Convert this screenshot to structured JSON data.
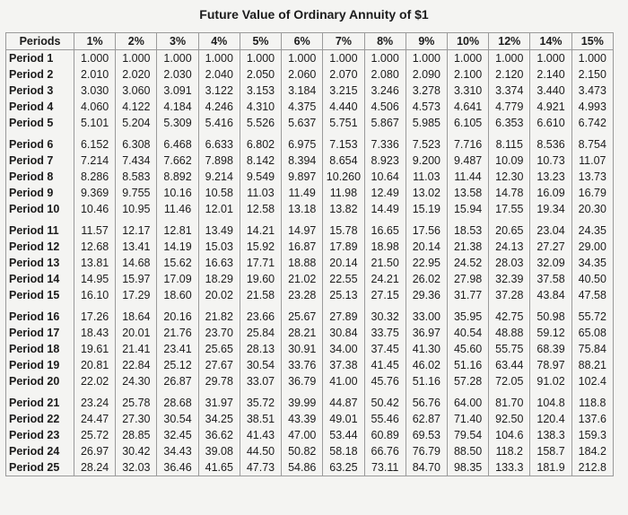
{
  "title": "Future Value of Ordinary Annuity of $1",
  "table": {
    "header": [
      "Periods",
      "1%",
      "2%",
      "3%",
      "4%",
      "5%",
      "6%",
      "7%",
      "8%",
      "9%",
      "10%",
      "12%",
      "14%",
      "15%"
    ],
    "rows": [
      [
        "Period 1",
        "1.000",
        "1.000",
        "1.000",
        "1.000",
        "1.000",
        "1.000",
        "1.000",
        "1.000",
        "1.000",
        "1.000",
        "1.000",
        "1.000",
        "1.000"
      ],
      [
        "Period 2",
        "2.010",
        "2.020",
        "2.030",
        "2.040",
        "2.050",
        "2.060",
        "2.070",
        "2.080",
        "2.090",
        "2.100",
        "2.120",
        "2.140",
        "2.150"
      ],
      [
        "Period 3",
        "3.030",
        "3.060",
        "3.091",
        "3.122",
        "3.153",
        "3.184",
        "3.215",
        "3.246",
        "3.278",
        "3.310",
        "3.374",
        "3.440",
        "3.473"
      ],
      [
        "Period 4",
        "4.060",
        "4.122",
        "4.184",
        "4.246",
        "4.310",
        "4.375",
        "4.440",
        "4.506",
        "4.573",
        "4.641",
        "4.779",
        "4.921",
        "4.993"
      ],
      [
        "Period 5",
        "5.101",
        "5.204",
        "5.309",
        "5.416",
        "5.526",
        "5.637",
        "5.751",
        "5.867",
        "5.985",
        "6.105",
        "6.353",
        "6.610",
        "6.742"
      ],
      [
        "Period 6",
        "6.152",
        "6.308",
        "6.468",
        "6.633",
        "6.802",
        "6.975",
        "7.153",
        "7.336",
        "7.523",
        "7.716",
        "8.115",
        "8.536",
        "8.754"
      ],
      [
        "Period 7",
        "7.214",
        "7.434",
        "7.662",
        "7.898",
        "8.142",
        "8.394",
        "8.654",
        "8.923",
        "9.200",
        "9.487",
        "10.09",
        "10.73",
        "11.07"
      ],
      [
        "Period 8",
        "8.286",
        "8.583",
        "8.892",
        "9.214",
        "9.549",
        "9.897",
        "10.260",
        "10.64",
        "11.03",
        "11.44",
        "12.30",
        "13.23",
        "13.73"
      ],
      [
        "Period 9",
        "9.369",
        "9.755",
        "10.16",
        "10.58",
        "11.03",
        "11.49",
        "11.98",
        "12.49",
        "13.02",
        "13.58",
        "14.78",
        "16.09",
        "16.79"
      ],
      [
        "Period 10",
        "10.46",
        "10.95",
        "11.46",
        "12.01",
        "12.58",
        "13.18",
        "13.82",
        "14.49",
        "15.19",
        "15.94",
        "17.55",
        "19.34",
        "20.30"
      ],
      [
        "Period 11",
        "11.57",
        "12.17",
        "12.81",
        "13.49",
        "14.21",
        "14.97",
        "15.78",
        "16.65",
        "17.56",
        "18.53",
        "20.65",
        "23.04",
        "24.35"
      ],
      [
        "Period 12",
        "12.68",
        "13.41",
        "14.19",
        "15.03",
        "15.92",
        "16.87",
        "17.89",
        "18.98",
        "20.14",
        "21.38",
        "24.13",
        "27.27",
        "29.00"
      ],
      [
        "Period 13",
        "13.81",
        "14.68",
        "15.62",
        "16.63",
        "17.71",
        "18.88",
        "20.14",
        "21.50",
        "22.95",
        "24.52",
        "28.03",
        "32.09",
        "34.35"
      ],
      [
        "Period 14",
        "14.95",
        "15.97",
        "17.09",
        "18.29",
        "19.60",
        "21.02",
        "22.55",
        "24.21",
        "26.02",
        "27.98",
        "32.39",
        "37.58",
        "40.50"
      ],
      [
        "Period 15",
        "16.10",
        "17.29",
        "18.60",
        "20.02",
        "21.58",
        "23.28",
        "25.13",
        "27.15",
        "29.36",
        "31.77",
        "37.28",
        "43.84",
        "47.58"
      ],
      [
        "Period 16",
        "17.26",
        "18.64",
        "20.16",
        "21.82",
        "23.66",
        "25.67",
        "27.89",
        "30.32",
        "33.00",
        "35.95",
        "42.75",
        "50.98",
        "55.72"
      ],
      [
        "Period 17",
        "18.43",
        "20.01",
        "21.76",
        "23.70",
        "25.84",
        "28.21",
        "30.84",
        "33.75",
        "36.97",
        "40.54",
        "48.88",
        "59.12",
        "65.08"
      ],
      [
        "Period 18",
        "19.61",
        "21.41",
        "23.41",
        "25.65",
        "28.13",
        "30.91",
        "34.00",
        "37.45",
        "41.30",
        "45.60",
        "55.75",
        "68.39",
        "75.84"
      ],
      [
        "Period 19",
        "20.81",
        "22.84",
        "25.12",
        "27.67",
        "30.54",
        "33.76",
        "37.38",
        "41.45",
        "46.02",
        "51.16",
        "63.44",
        "78.97",
        "88.21"
      ],
      [
        "Period 20",
        "22.02",
        "24.30",
        "26.87",
        "29.78",
        "33.07",
        "36.79",
        "41.00",
        "45.76",
        "51.16",
        "57.28",
        "72.05",
        "91.02",
        "102.4"
      ],
      [
        "Period 21",
        "23.24",
        "25.78",
        "28.68",
        "31.97",
        "35.72",
        "39.99",
        "44.87",
        "50.42",
        "56.76",
        "64.00",
        "81.70",
        "104.8",
        "118.8"
      ],
      [
        "Period 22",
        "24.47",
        "27.30",
        "30.54",
        "34.25",
        "38.51",
        "43.39",
        "49.01",
        "55.46",
        "62.87",
        "71.40",
        "92.50",
        "120.4",
        "137.6"
      ],
      [
        "Period 23",
        "25.72",
        "28.85",
        "32.45",
        "36.62",
        "41.43",
        "47.00",
        "53.44",
        "60.89",
        "69.53",
        "79.54",
        "104.6",
        "138.3",
        "159.3"
      ],
      [
        "Period 24",
        "26.97",
        "30.42",
        "34.43",
        "39.08",
        "44.50",
        "50.82",
        "58.18",
        "66.76",
        "76.79",
        "88.50",
        "118.2",
        "158.7",
        "184.2"
      ],
      [
        "Period 25",
        "28.24",
        "32.03",
        "36.46",
        "41.65",
        "47.73",
        "54.86",
        "63.25",
        "73.11",
        "84.70",
        "98.35",
        "133.3",
        "181.9",
        "212.8"
      ]
    ]
  }
}
